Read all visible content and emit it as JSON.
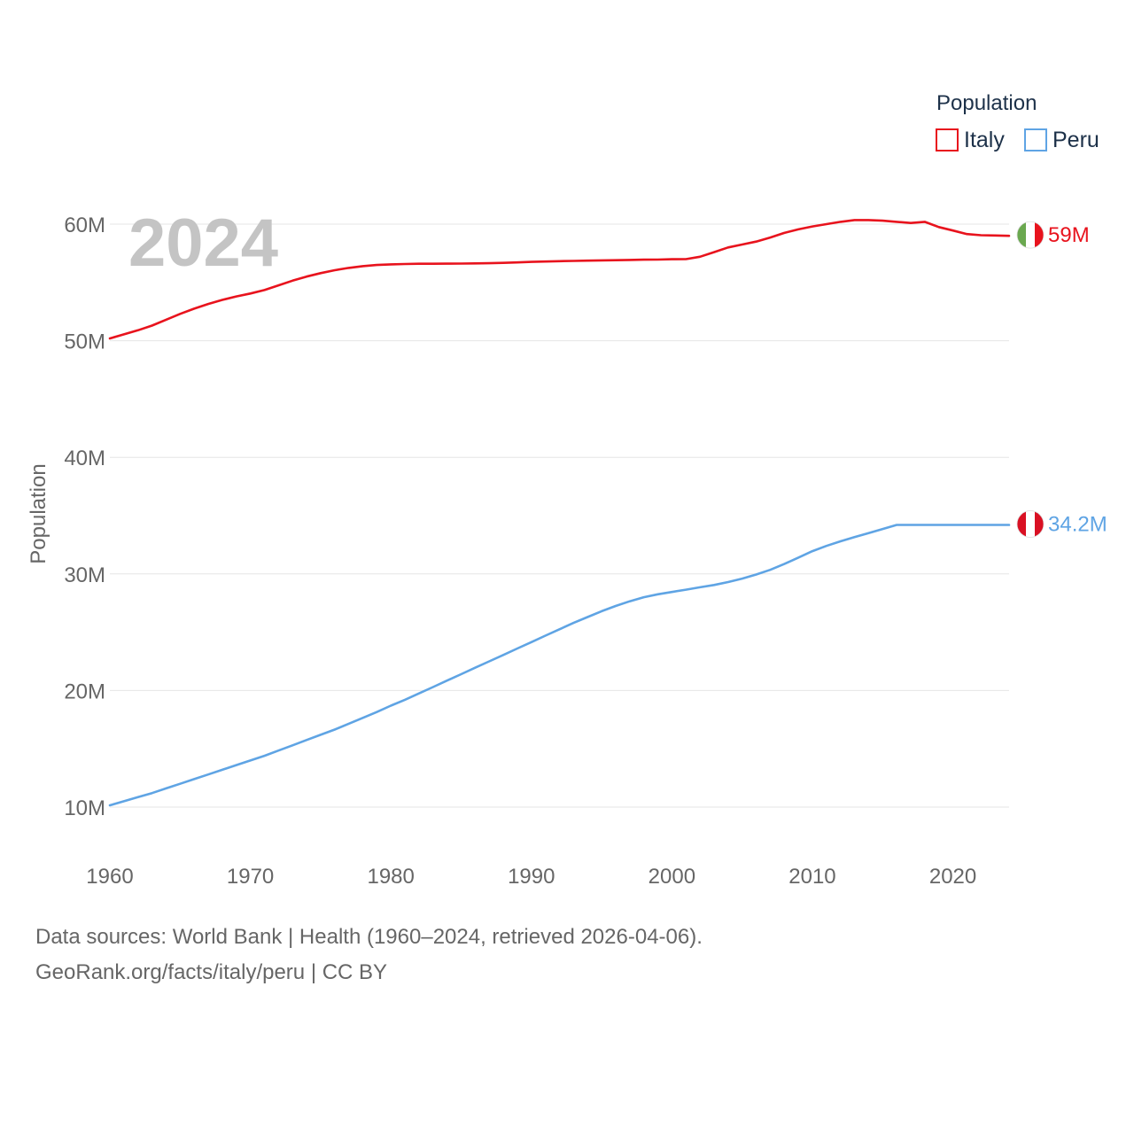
{
  "chart_data": {
    "type": "line",
    "title": "",
    "watermark_year": "2024",
    "xlabel": "",
    "ylabel": "Population",
    "xlim": [
      1960,
      2024
    ],
    "ylim": [
      5000000,
      65000000
    ],
    "x_ticks": [
      1960,
      1970,
      1980,
      1990,
      2000,
      2010,
      2020
    ],
    "x_tick_labels": [
      "1960",
      "1970",
      "1980",
      "1990",
      "2000",
      "2010",
      "2020"
    ],
    "y_ticks": [
      10000000,
      20000000,
      30000000,
      40000000,
      50000000,
      60000000
    ],
    "y_tick_labels": [
      "10M",
      "20M",
      "30M",
      "40M",
      "50M",
      "60M"
    ],
    "legend": {
      "title": "Population",
      "position": "top-right"
    },
    "x": [
      1960,
      1961,
      1962,
      1963,
      1964,
      1965,
      1966,
      1967,
      1968,
      1969,
      1970,
      1971,
      1972,
      1973,
      1974,
      1975,
      1976,
      1977,
      1978,
      1979,
      1980,
      1981,
      1982,
      1983,
      1984,
      1985,
      1986,
      1987,
      1988,
      1989,
      1990,
      1991,
      1992,
      1993,
      1994,
      1995,
      1996,
      1997,
      1998,
      1999,
      2000,
      2001,
      2002,
      2003,
      2004,
      2005,
      2006,
      2007,
      2008,
      2009,
      2010,
      2011,
      2012,
      2013,
      2014,
      2015,
      2016,
      2017,
      2018,
      2019,
      2020,
      2021,
      2022,
      2023,
      2024
    ],
    "series": [
      {
        "name": "Italy",
        "color": "#e8131d",
        "end_label": "59M",
        "flag": "italy",
        "values": [
          50200000,
          50550000,
          50900000,
          51300000,
          51800000,
          52300000,
          52750000,
          53150000,
          53500000,
          53800000,
          54050000,
          54350000,
          54750000,
          55150000,
          55500000,
          55800000,
          56050000,
          56250000,
          56400000,
          56500000,
          56550000,
          56580000,
          56600000,
          56600000,
          56610000,
          56620000,
          56630000,
          56650000,
          56680000,
          56720000,
          56760000,
          56790000,
          56820000,
          56850000,
          56870000,
          56890000,
          56910000,
          56930000,
          56950000,
          56960000,
          56990000,
          57000000,
          57200000,
          57600000,
          58000000,
          58250000,
          58500000,
          58850000,
          59250000,
          59550000,
          59800000,
          60000000,
          60200000,
          60350000,
          60350000,
          60300000,
          60200000,
          60100000,
          60200000,
          59750000,
          59450000,
          59150000,
          59050000,
          59030000,
          59000000
        ]
      },
      {
        "name": "Peru",
        "color": "#5fa4e4",
        "end_label": "34.2M",
        "flag": "peru",
        "values": [
          10150000,
          10500000,
          10850000,
          11200000,
          11600000,
          12000000,
          12400000,
          12800000,
          13200000,
          13600000,
          14000000,
          14400000,
          14850000,
          15300000,
          15750000,
          16200000,
          16650000,
          17150000,
          17650000,
          18150000,
          18700000,
          19200000,
          19750000,
          20300000,
          20850000,
          21400000,
          21950000,
          22500000,
          23050000,
          23600000,
          24150000,
          24700000,
          25250000,
          25800000,
          26300000,
          26800000,
          27250000,
          27650000,
          28000000,
          28250000,
          28450000,
          28650000,
          28850000,
          29050000,
          29300000,
          29600000,
          29950000,
          30350000,
          30850000,
          31400000,
          31950000,
          32400000,
          32800000,
          33150000,
          33500000,
          33850000,
          34200000,
          34200000,
          34200000,
          34200000,
          34200000,
          34200000,
          34200000,
          34200000,
          34200000
        ]
      }
    ]
  },
  "footer": {
    "line1": "Data sources: World Bank | Health (1960–2024, retrieved 2026-04-06).",
    "line2": "GeoRank.org/facts/italy/peru | CC BY"
  }
}
